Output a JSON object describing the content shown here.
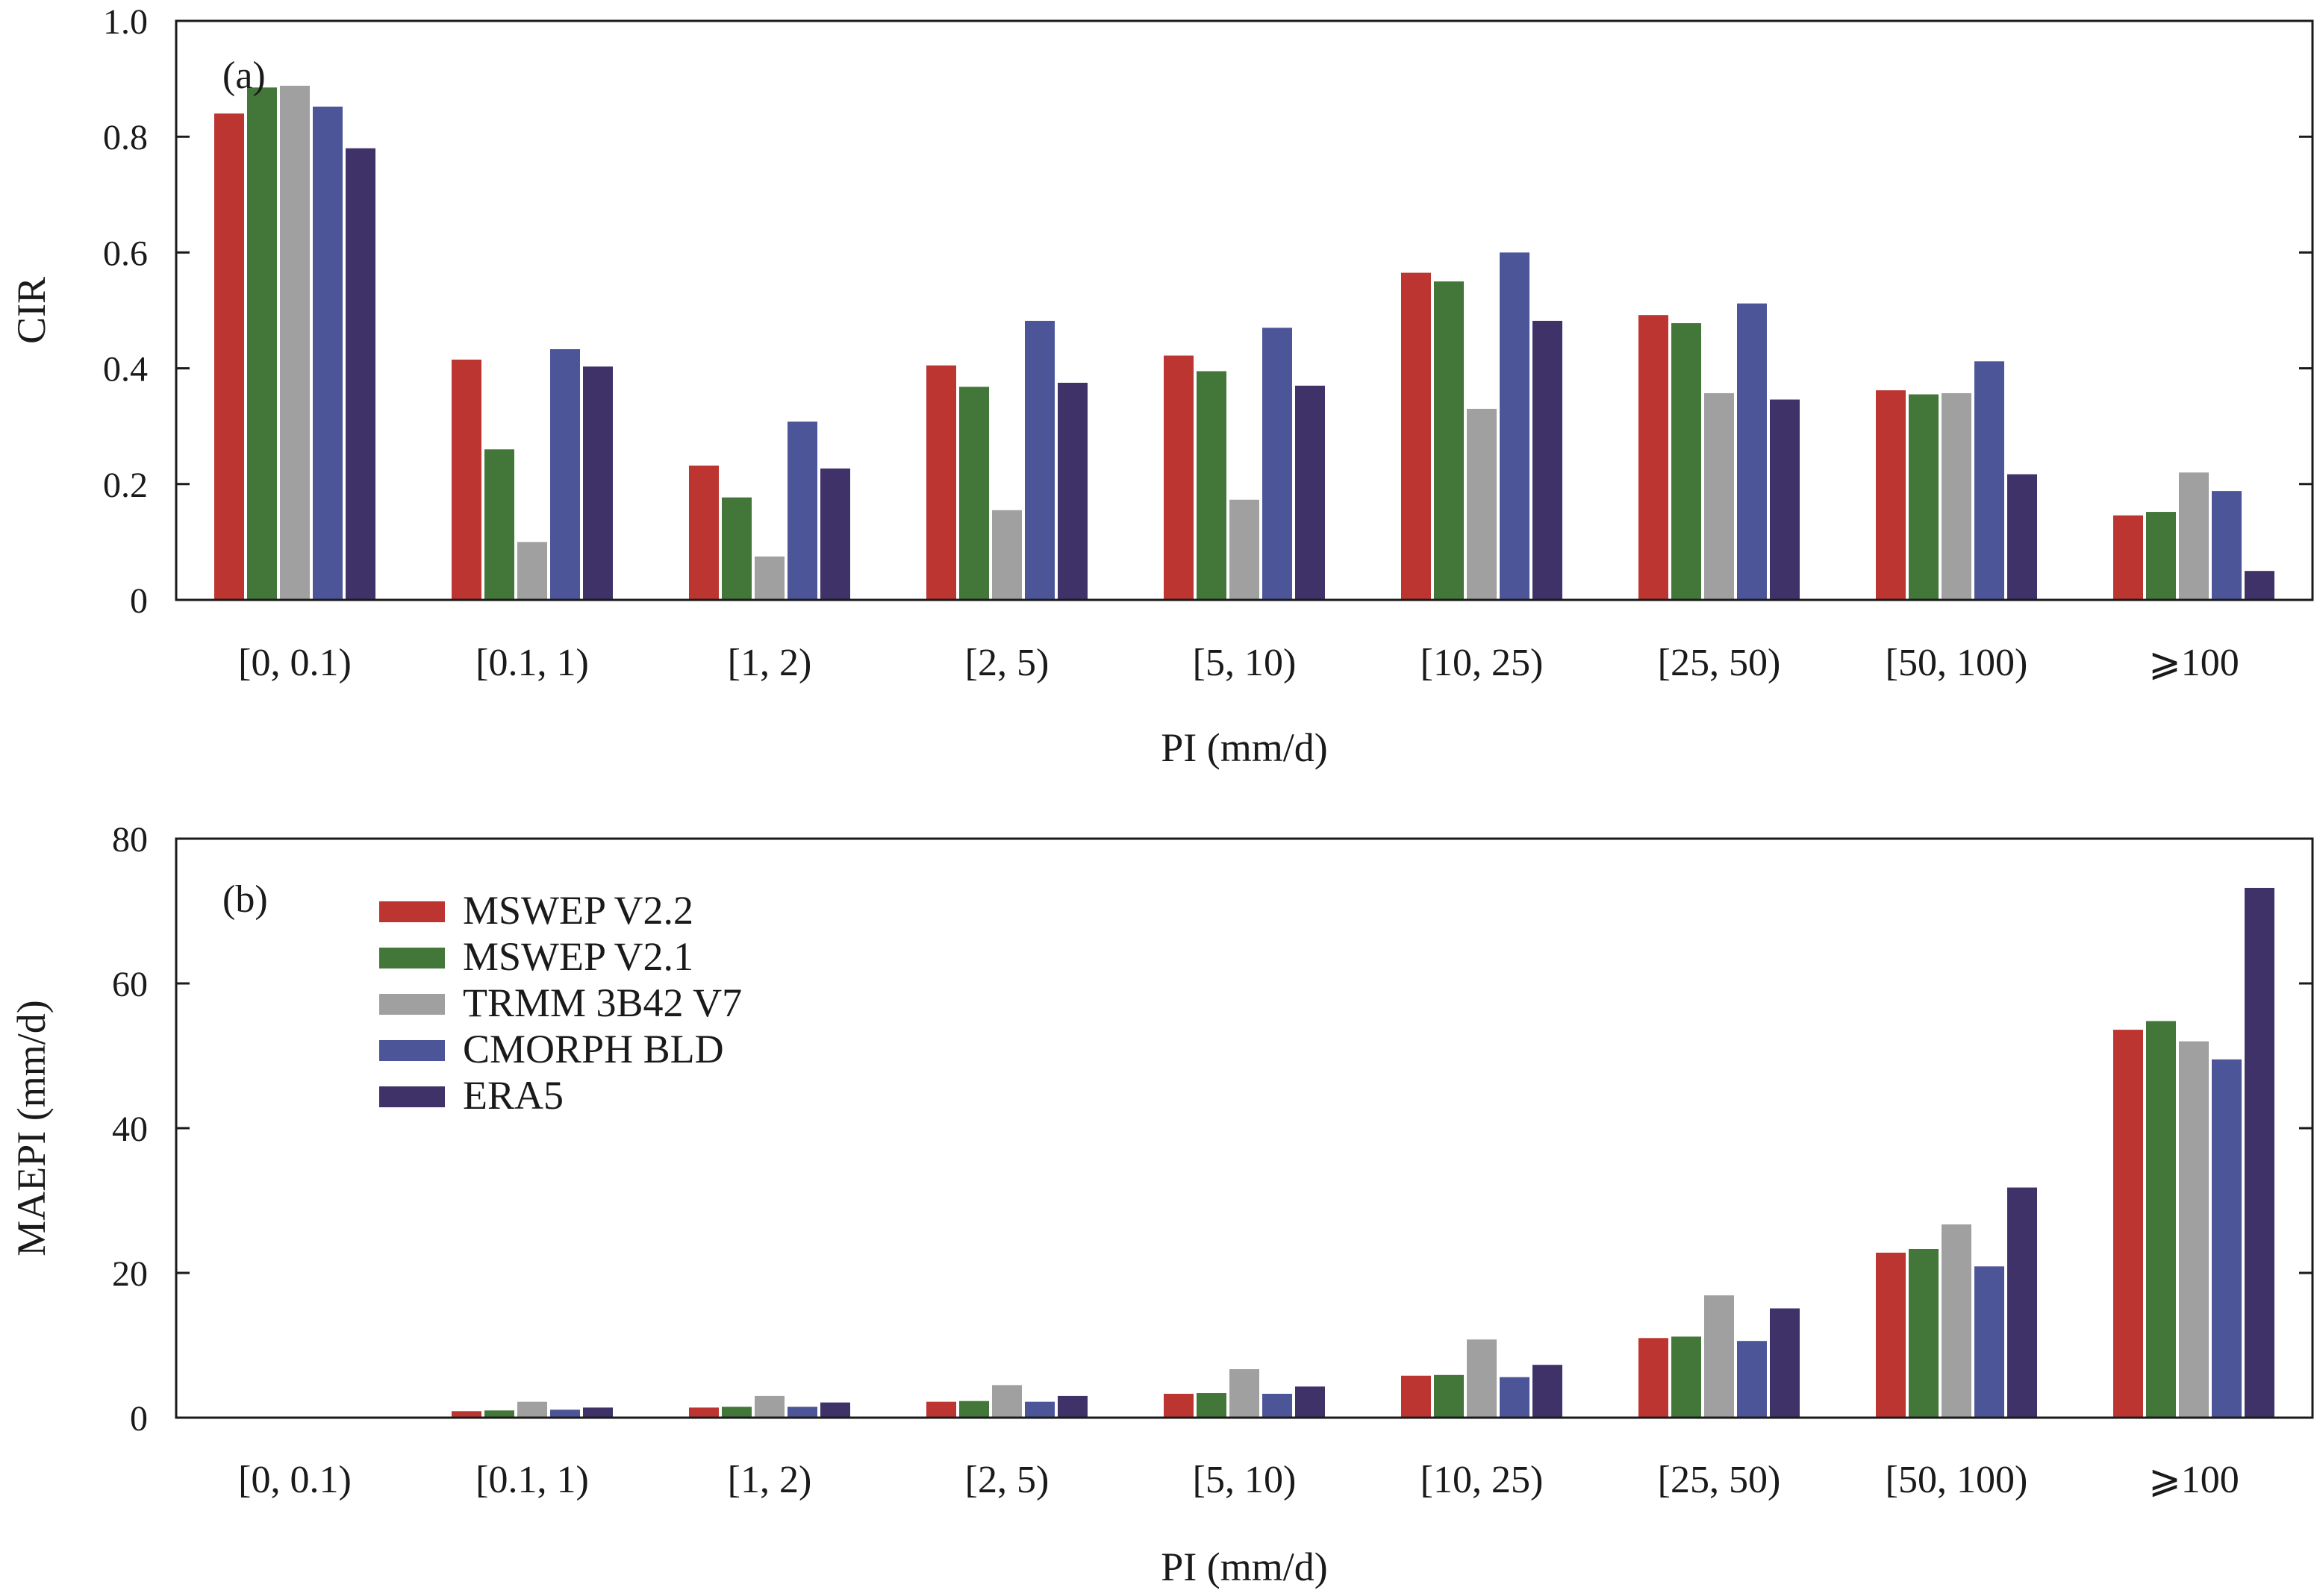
{
  "colors": {
    "MSWEP V2.2": "#bd3531",
    "MSWEP V2.1": "#437739",
    "TRMM 3B42 V7": "#a0a0a0",
    "CMORPH BLD": "#4d5599",
    "ERA5": "#3e3268",
    "axis": "#1a1a1a"
  },
  "chart_data": [
    {
      "type": "bar",
      "panel_label": "(a)",
      "xlabel": "PI (mm/d)",
      "ylabel": "CIR",
      "ylim": [
        0,
        1.0
      ],
      "yticks": [
        {
          "value": 0,
          "label": "0"
        },
        {
          "value": 0.2,
          "label": "0.2"
        },
        {
          "value": 0.4,
          "label": "0.4"
        },
        {
          "value": 0.6,
          "label": "0.6"
        },
        {
          "value": 0.8,
          "label": "0.8"
        },
        {
          "value": 1.0,
          "label": "1.0"
        }
      ],
      "categories": [
        "[0, 0.1)",
        "[0.1, 1)",
        "[1, 2)",
        "[2, 5)",
        "[5, 10)",
        "[10, 25)",
        "[25, 50)",
        "[50, 100)",
        "⩾100"
      ],
      "grid": false,
      "legend": "none",
      "series": [
        {
          "name": "MSWEP V2.2",
          "values": [
            0.84,
            0.415,
            0.232,
            0.405,
            0.422,
            0.565,
            0.492,
            0.362,
            0.146
          ]
        },
        {
          "name": "MSWEP V2.1",
          "values": [
            0.885,
            0.26,
            0.177,
            0.368,
            0.395,
            0.55,
            0.478,
            0.355,
            0.152
          ]
        },
        {
          "name": "TRMM 3B42 V7",
          "values": [
            0.888,
            0.1,
            0.075,
            0.155,
            0.173,
            0.33,
            0.357,
            0.357,
            0.22
          ]
        },
        {
          "name": "CMORPH BLD",
          "values": [
            0.852,
            0.433,
            0.308,
            0.482,
            0.47,
            0.6,
            0.512,
            0.412,
            0.188
          ]
        },
        {
          "name": "ERA5",
          "values": [
            0.78,
            0.403,
            0.227,
            0.375,
            0.37,
            0.482,
            0.346,
            0.217,
            0.05
          ]
        }
      ]
    },
    {
      "type": "bar",
      "panel_label": "(b)",
      "xlabel": "PI (mm/d)",
      "ylabel": "MAEPI (mm/d)",
      "ylim": [
        0,
        80
      ],
      "yticks": [
        {
          "value": 0,
          "label": "0"
        },
        {
          "value": 20,
          "label": "20"
        },
        {
          "value": 40,
          "label": "40"
        },
        {
          "value": 60,
          "label": "60"
        },
        {
          "value": 80,
          "label": "80"
        }
      ],
      "categories": [
        "[0, 0.1)",
        "[0.1, 1)",
        "[1, 2)",
        "[2, 5)",
        "[5, 10)",
        "[10, 25)",
        "[25, 50)",
        "[50, 100)",
        "⩾100"
      ],
      "grid": false,
      "legend": "top-left",
      "series": [
        {
          "name": "MSWEP V2.2",
          "values": [
            0,
            0.9,
            1.4,
            2.2,
            3.3,
            5.8,
            11.0,
            22.8,
            53.6
          ]
        },
        {
          "name": "MSWEP V2.1",
          "values": [
            0,
            1.0,
            1.5,
            2.3,
            3.4,
            5.9,
            11.2,
            23.3,
            54.8
          ]
        },
        {
          "name": "TRMM 3B42 V7",
          "values": [
            0,
            2.2,
            3.0,
            4.5,
            6.7,
            10.8,
            16.9,
            26.7,
            52.0
          ]
        },
        {
          "name": "CMORPH BLD",
          "values": [
            0,
            1.1,
            1.5,
            2.2,
            3.3,
            5.6,
            10.6,
            20.9,
            49.5
          ]
        },
        {
          "name": "ERA5",
          "values": [
            0,
            1.4,
            2.1,
            3.0,
            4.3,
            7.3,
            15.1,
            31.8,
            73.2
          ]
        }
      ]
    }
  ]
}
